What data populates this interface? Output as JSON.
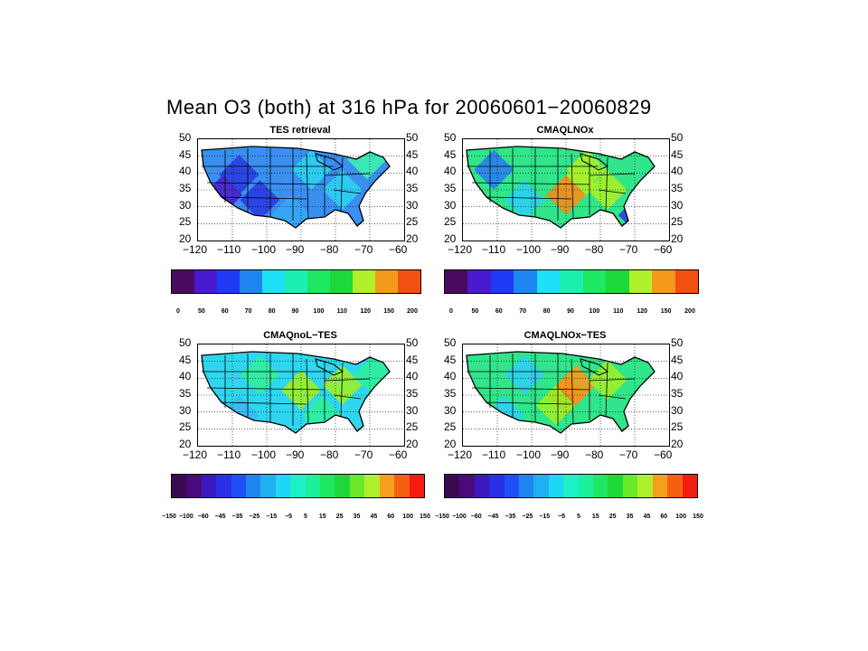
{
  "figure": {
    "title": "Mean O3 (both) at  316 hPa for 20060601−20060829"
  },
  "axes": {
    "lat_ticks": [
      "50",
      "45",
      "40",
      "35",
      "30",
      "25",
      "20"
    ],
    "lon_ticks": [
      "−120",
      "−110",
      "−100",
      "−90",
      "−80",
      "−70",
      "−60"
    ]
  },
  "panels": [
    {
      "title": "TES retrieval",
      "palette": "abs",
      "fill": "#3a8ff0",
      "hot": [
        [
          0.2,
          0.35,
          "#2a3de0"
        ],
        [
          0.12,
          0.55,
          "#4a22c8"
        ],
        [
          0.3,
          0.6,
          "#2a3de0"
        ],
        [
          0.55,
          0.3,
          "#2dd0f0"
        ],
        [
          0.7,
          0.5,
          "#2dd0f0"
        ],
        [
          0.1,
          0.85,
          "#2a3de0"
        ],
        [
          0.45,
          0.75,
          "#39a6f6"
        ],
        [
          0.82,
          0.2,
          "#3cf0b0"
        ]
      ]
    },
    {
      "title": "CMAQLNOx",
      "palette": "abs",
      "fill": "#30e58a",
      "hot": [
        [
          0.55,
          0.45,
          "#a6ef2a"
        ],
        [
          0.5,
          0.55,
          "#f08c1c"
        ],
        [
          0.6,
          0.3,
          "#a6ef2a"
        ],
        [
          0.15,
          0.3,
          "#2a7df0"
        ],
        [
          0.1,
          0.85,
          "#4a22c8"
        ],
        [
          0.85,
          0.75,
          "#2a3de0"
        ],
        [
          0.3,
          0.6,
          "#2dd0f0"
        ],
        [
          0.7,
          0.5,
          "#a6ef2a"
        ]
      ]
    },
    {
      "title": "CMAQnoL−TES",
      "palette": "diff",
      "fill": "#2fd6ef",
      "hot": [
        [
          0.5,
          0.45,
          "#9bef2a"
        ],
        [
          0.3,
          0.3,
          "#2ff09a"
        ],
        [
          0.7,
          0.4,
          "#9bef2a"
        ],
        [
          0.6,
          0.7,
          "#2ff09a"
        ],
        [
          0.2,
          0.7,
          "#34bdf5"
        ],
        [
          0.85,
          0.3,
          "#2ff09a"
        ]
      ]
    },
    {
      "title": "CMAQLNOx−TES",
      "palette": "diff",
      "fill": "#30e58a",
      "hot": [
        [
          0.5,
          0.5,
          "#f2581c"
        ],
        [
          0.55,
          0.4,
          "#f59a1c"
        ],
        [
          0.45,
          0.6,
          "#9bef2a"
        ],
        [
          0.3,
          0.3,
          "#2dd0f0"
        ],
        [
          0.7,
          0.35,
          "#9bef2a"
        ],
        [
          0.2,
          0.7,
          "#2dd0f0"
        ]
      ]
    }
  ],
  "colorbars": [
    {
      "palette": "abs",
      "colors": [
        "#4a0a5e",
        "#4a1ad0",
        "#1f3af5",
        "#1f86ef",
        "#1ee0f6",
        "#1cf0b0",
        "#1ee862",
        "#1ed83a",
        "#b0f02a",
        "#f49a1c",
        "#f05010"
      ],
      "labels": [
        "0",
        "50",
        "60",
        "70",
        "80",
        "90",
        "100",
        "110",
        "120",
        "150",
        "200"
      ]
    },
    {
      "palette": "diff",
      "colors": [
        "#3a0a50",
        "#4a0a7e",
        "#3a1ac0",
        "#2a30e8",
        "#1f50f5",
        "#1f86ef",
        "#1fb0f2",
        "#1ed6f5",
        "#1cf0c8",
        "#1cf09a",
        "#1ee862",
        "#1ed83a",
        "#6ae82a",
        "#b0f02a",
        "#f4a01c",
        "#f46010",
        "#f21c10"
      ],
      "labels": [
        "−150",
        "−100",
        "−60",
        "−45",
        "−35",
        "−25",
        "−15",
        "−5",
        "5",
        "15",
        "25",
        "35",
        "45",
        "60",
        "100",
        "150"
      ]
    }
  ]
}
